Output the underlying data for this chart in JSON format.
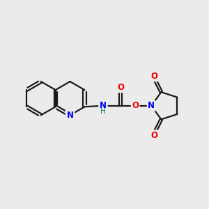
{
  "background_color": "#ebebeb",
  "bond_color": "#1a1a1a",
  "N_color": "#0000ee",
  "O_color": "#ee0000",
  "H_color": "#008080",
  "figsize": [
    3.0,
    3.0
  ],
  "dpi": 100,
  "xlim": [
    0,
    10
  ],
  "ylim": [
    0,
    10
  ]
}
